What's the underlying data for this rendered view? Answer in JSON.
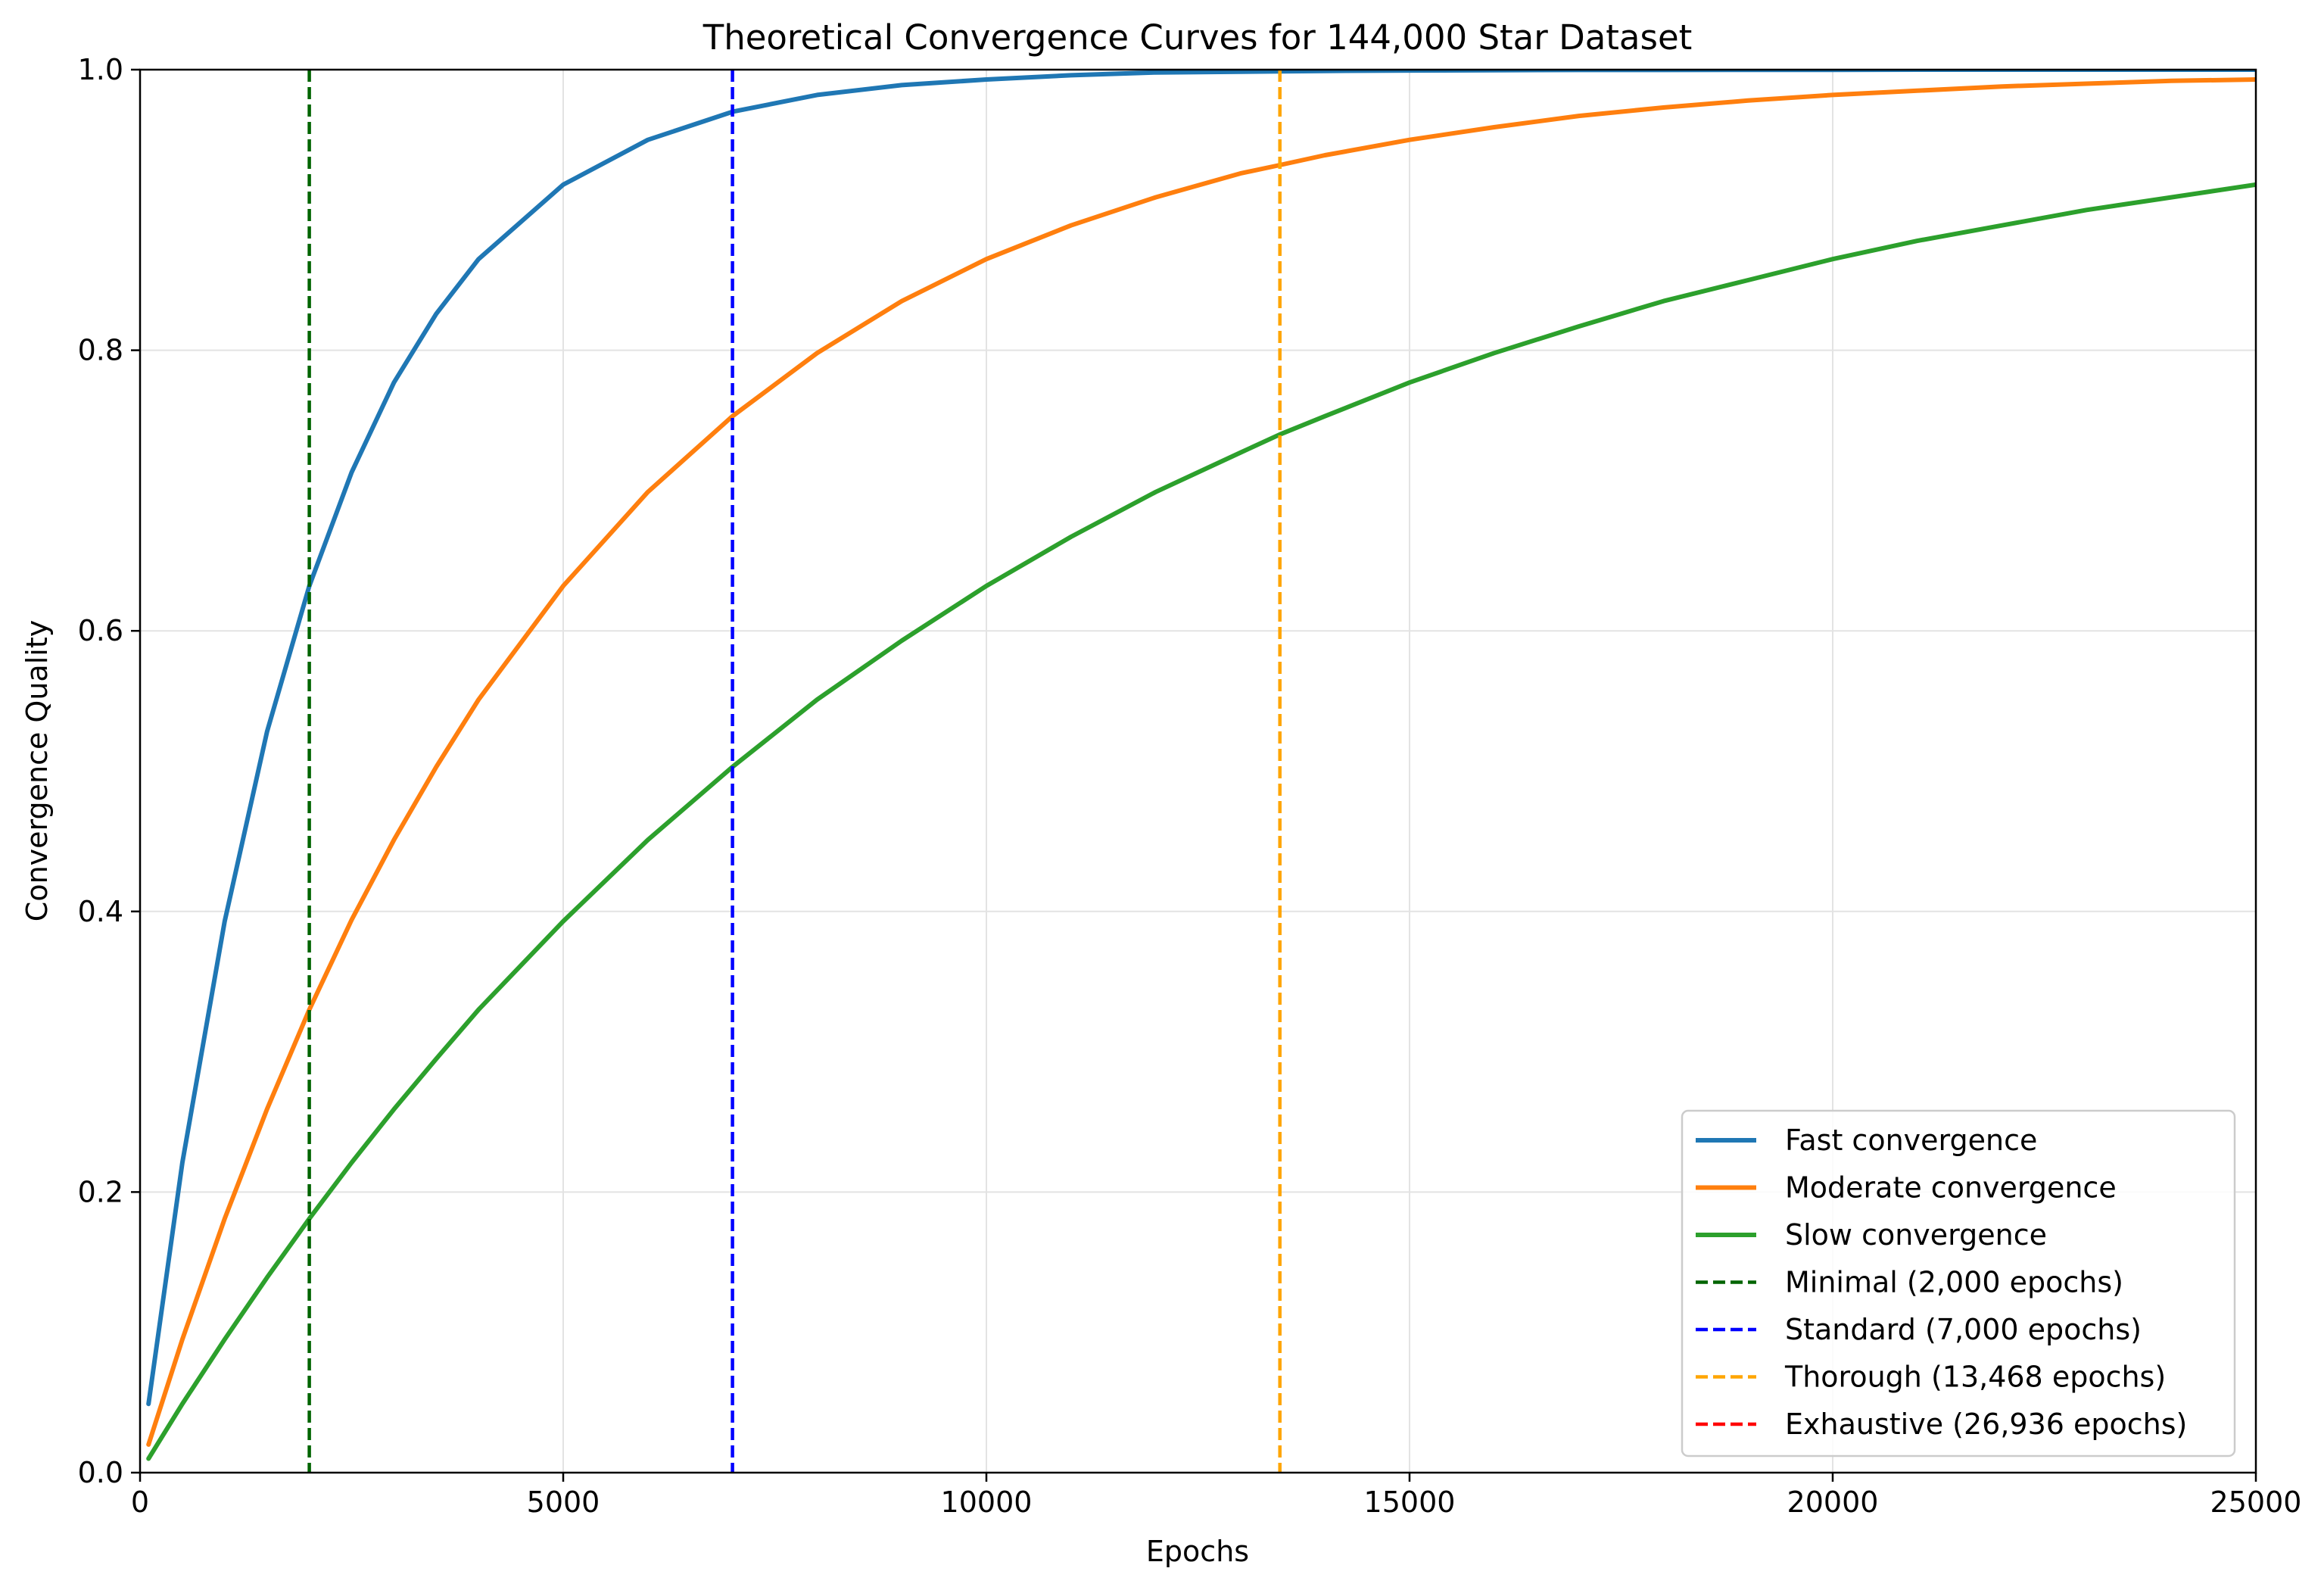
{
  "chart_data": {
    "type": "line",
    "title": "Theoretical Convergence Curves for 144,000 Star Dataset",
    "xlabel": "Epochs",
    "ylabel": "Convergence Quality",
    "xlim": [
      0,
      25000
    ],
    "ylim": [
      0,
      1.0
    ],
    "x_ticks": [
      0,
      5000,
      10000,
      15000,
      20000,
      25000
    ],
    "x_tick_labels": [
      "0",
      "5000",
      "10000",
      "15000",
      "20000",
      "25000"
    ],
    "y_ticks": [
      0,
      0.2,
      0.4,
      0.6,
      0.8,
      1.0
    ],
    "y_tick_labels": [
      "0.0",
      "0.2",
      "0.4",
      "0.6",
      "0.8",
      "1.0"
    ],
    "grid": true,
    "legend_position": "lower-right",
    "x": [
      100,
      500,
      1000,
      1500,
      2000,
      2500,
      3000,
      3500,
      4000,
      5000,
      6000,
      7000,
      8000,
      9000,
      10000,
      11000,
      12000,
      13000,
      13468,
      14000,
      15000,
      16000,
      17000,
      18000,
      19000,
      20000,
      21000,
      22000,
      23000,
      24000,
      25000
    ],
    "series": [
      {
        "name": "Fast convergence",
        "color": "#1f77b4",
        "style": "solid",
        "values": [
          0.049,
          0.221,
          0.393,
          0.528,
          0.632,
          0.713,
          0.777,
          0.826,
          0.865,
          0.918,
          0.95,
          0.97,
          0.982,
          0.989,
          0.993,
          0.996,
          0.998,
          0.9985,
          0.9988,
          0.9991,
          0.9994,
          0.9996,
          0.9998,
          0.9998,
          0.9999,
          0.9999,
          1.0,
          1.0,
          1.0,
          1.0,
          1.0
        ]
      },
      {
        "name": "Moderate convergence",
        "color": "#ff7f0e",
        "style": "solid",
        "values": [
          0.02,
          0.095,
          0.181,
          0.259,
          0.33,
          0.394,
          0.451,
          0.503,
          0.551,
          0.632,
          0.699,
          0.753,
          0.798,
          0.835,
          0.865,
          0.889,
          0.909,
          0.926,
          0.932,
          0.939,
          0.95,
          0.959,
          0.967,
          0.973,
          0.978,
          0.982,
          0.985,
          0.988,
          0.99,
          0.992,
          0.993
        ]
      },
      {
        "name": "Slow convergence",
        "color": "#2ca02c",
        "style": "solid",
        "values": [
          0.01,
          0.049,
          0.095,
          0.139,
          0.181,
          0.221,
          0.259,
          0.295,
          0.33,
          0.393,
          0.451,
          0.503,
          0.551,
          0.593,
          0.632,
          0.667,
          0.699,
          0.727,
          0.74,
          0.753,
          0.777,
          0.798,
          0.817,
          0.835,
          0.85,
          0.865,
          0.878,
          0.889,
          0.9,
          0.909,
          0.918
        ]
      }
    ],
    "vlines": [
      {
        "name": "Minimal (2,000 epochs)",
        "x": 2000,
        "color": "#006400",
        "style": "dashed"
      },
      {
        "name": "Standard (7,000 epochs)",
        "x": 7000,
        "color": "#0000ff",
        "style": "dashed"
      },
      {
        "name": "Thorough (13,468 epochs)",
        "x": 13468,
        "color": "#ffa500",
        "style": "dashed"
      },
      {
        "name": "Exhaustive (26,936 epochs)",
        "x": 26936,
        "color": "#ff0000",
        "style": "dashed"
      }
    ]
  }
}
